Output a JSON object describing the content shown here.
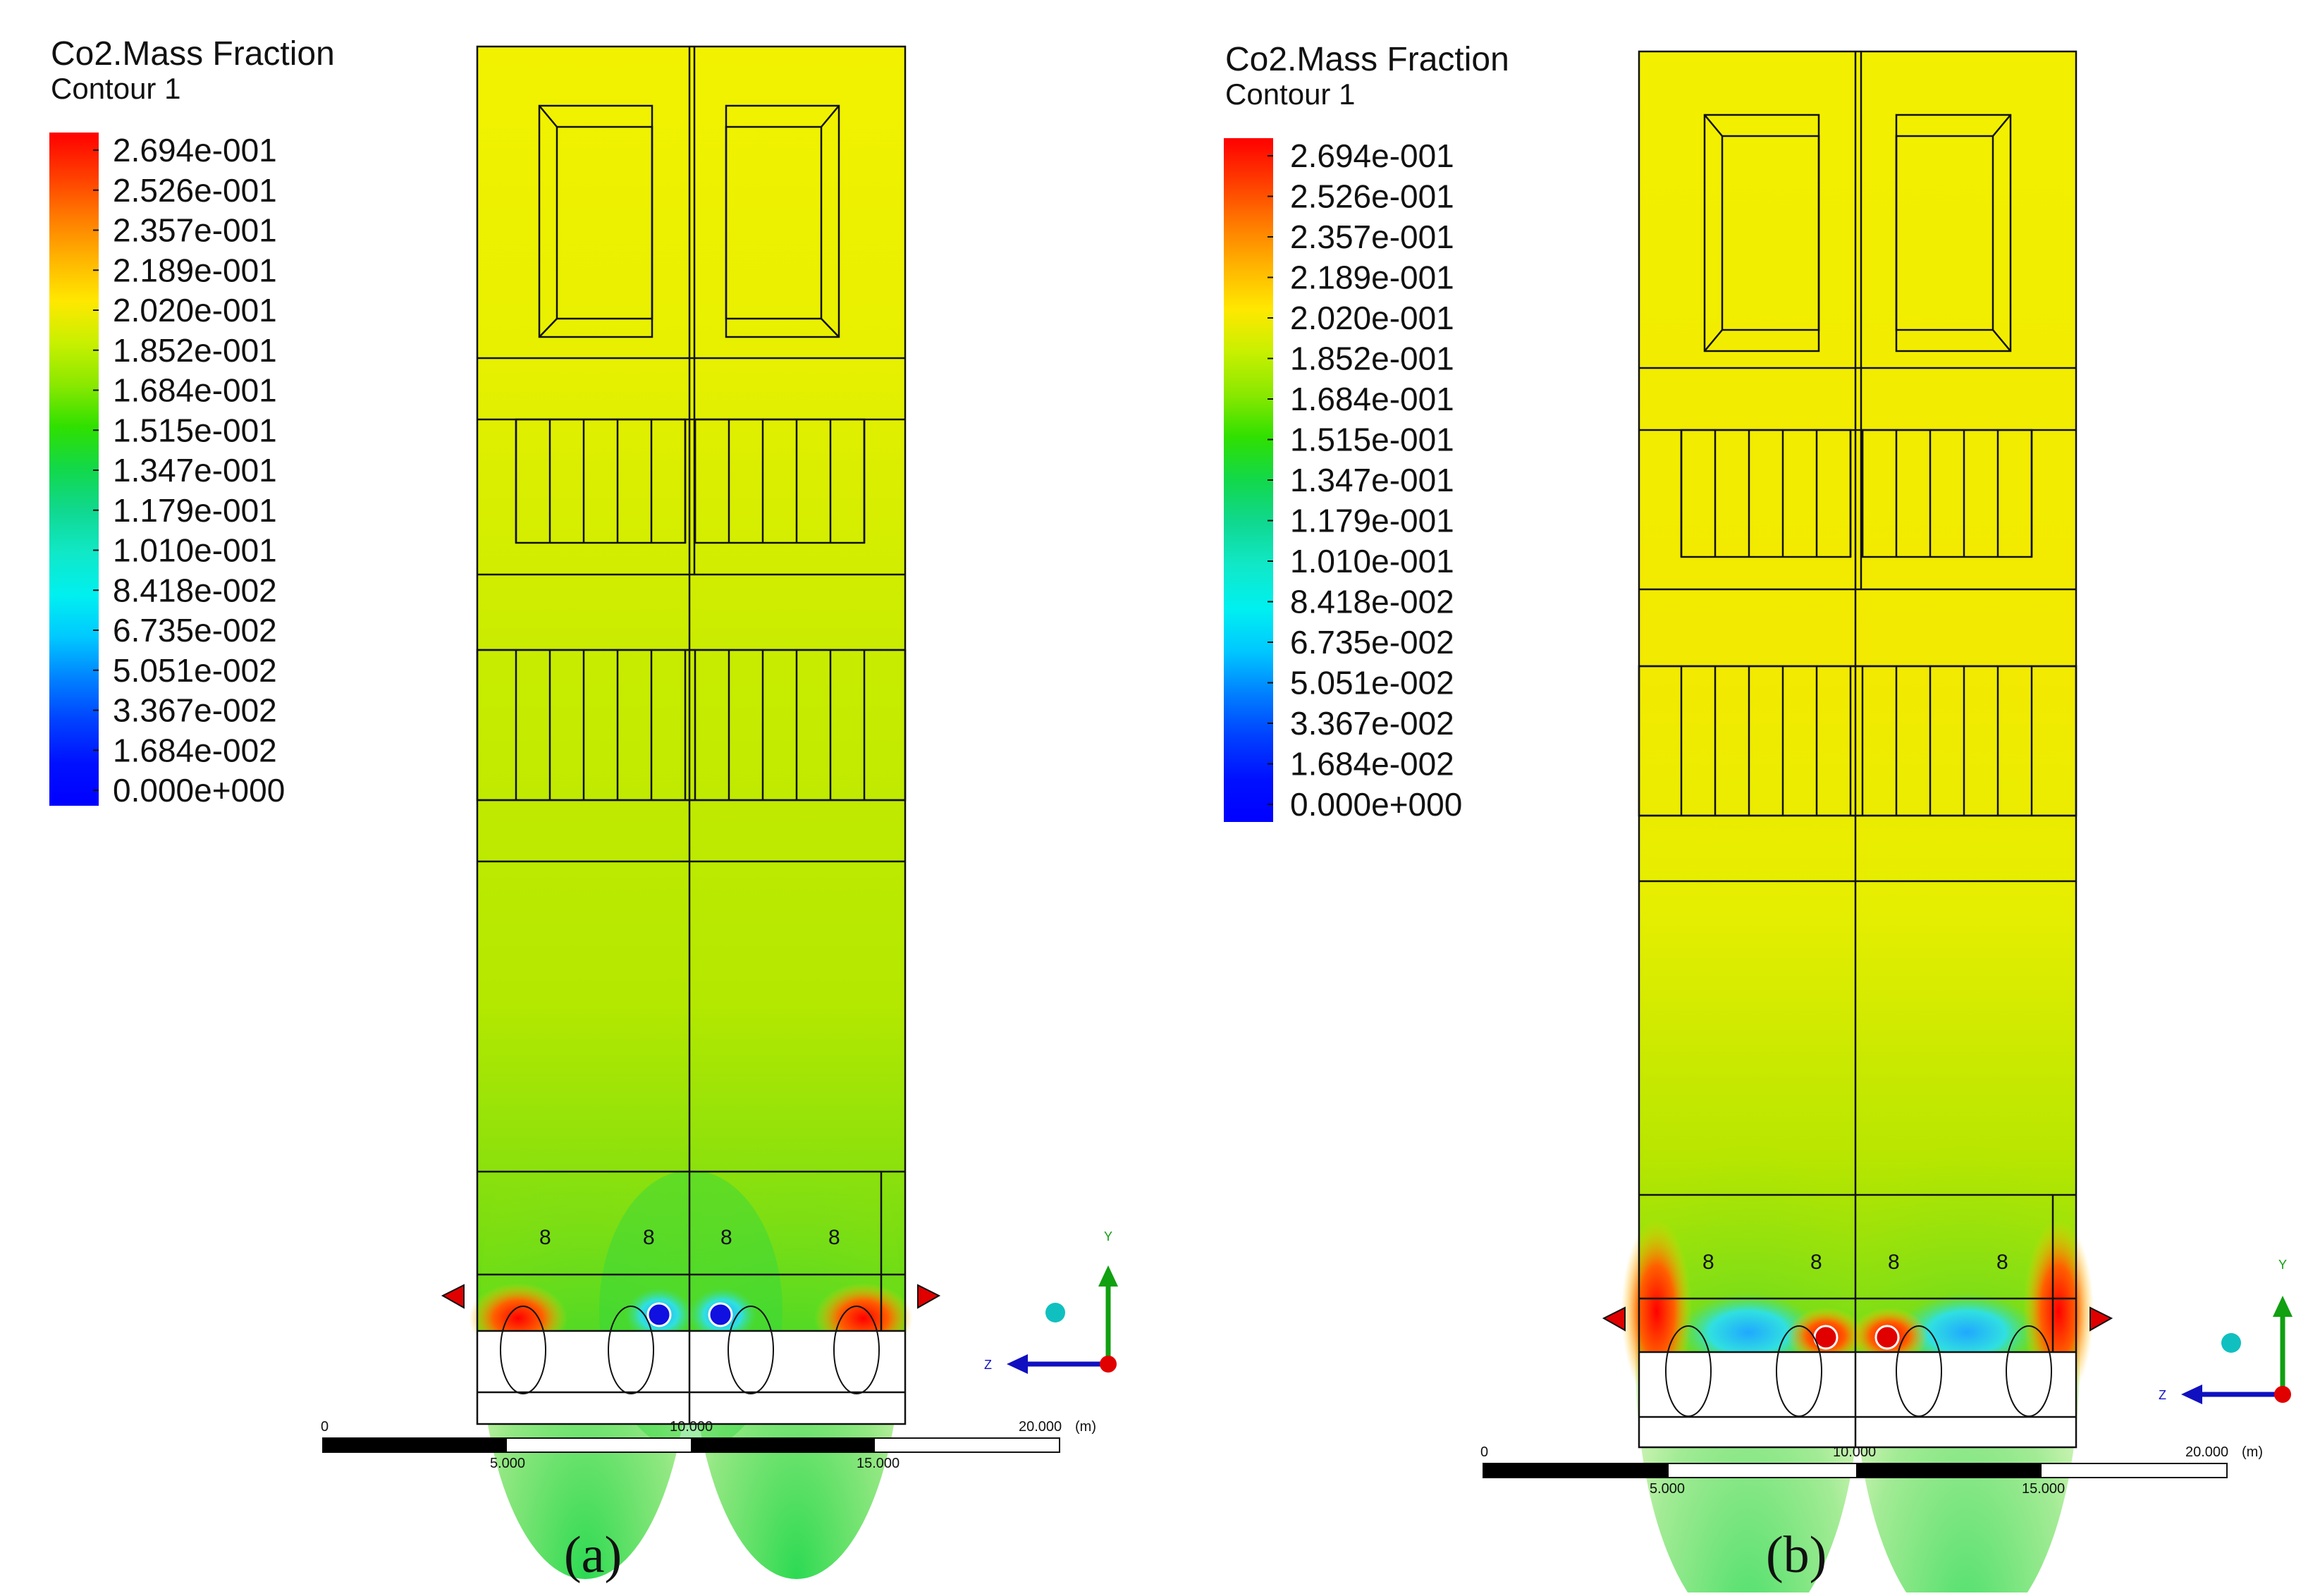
{
  "legend": {
    "title": "Co2.Mass Fraction",
    "subtitle": "Contour 1",
    "levels": [
      "2.694e-001",
      "2.526e-001",
      "2.357e-001",
      "2.189e-001",
      "2.020e-001",
      "1.852e-001",
      "1.684e-001",
      "1.515e-001",
      "1.347e-001",
      "1.179e-001",
      "1.010e-001",
      "8.418e-002",
      "6.735e-002",
      "5.051e-002",
      "3.367e-002",
      "1.684e-002",
      "0.000e+000"
    ],
    "colors": [
      "#ff0000",
      "#ff3b00",
      "#ff7a00",
      "#ffb400",
      "#ffe800",
      "#c8f000",
      "#8ae800",
      "#2fe000",
      "#12d84a",
      "#10d890",
      "#10e8c8",
      "#00f0f0",
      "#00c8ff",
      "#0080ff",
      "#0040ff",
      "#0010ff",
      "#0000ff"
    ]
  },
  "scale": {
    "ticks_top": [
      "0",
      "10.000",
      "20.000"
    ],
    "unit": "(m)",
    "ticks_bottom": [
      "5.000",
      "15.000"
    ]
  },
  "axes": {
    "y_label": "Y",
    "z_label": "Z"
  },
  "panels": [
    {
      "id": "a",
      "caption": "(a)",
      "label": "a"
    },
    {
      "id": "b",
      "caption": "(b)",
      "label": "b"
    }
  ],
  "occupant_marker": "8"
}
